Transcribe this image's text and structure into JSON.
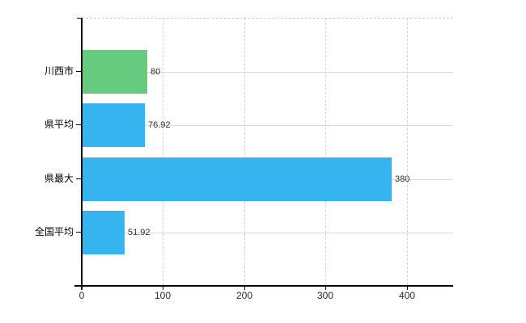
{
  "chart_data": {
    "type": "bar",
    "orientation": "horizontal",
    "title": "",
    "categories": [
      "川西市",
      "県平均",
      "県最大",
      "全国平均"
    ],
    "values": [
      80,
      76.92,
      380,
      51.92
    ],
    "value_labels": [
      "80",
      "76.92",
      "380",
      "51.92"
    ],
    "bar_colors": [
      "#66cb7f",
      "#36b4ef",
      "#36b4ef",
      "#36b4ef"
    ],
    "x_ticks": [
      0,
      100,
      200,
      300,
      400
    ],
    "x_tick_labels": [
      "0",
      "100",
      "200",
      "300",
      "400"
    ],
    "xlim": [
      0,
      457
    ],
    "grid": true,
    "legend": false
  }
}
